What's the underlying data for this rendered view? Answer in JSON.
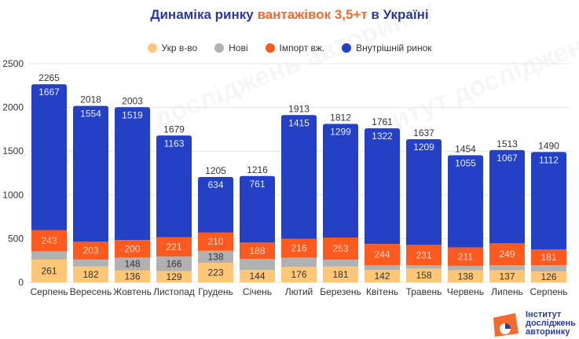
{
  "title": {
    "part1": "Динаміка ринку ",
    "part2": "вантажівок 3,5+т",
    "part3": " в Україні"
  },
  "colors": {
    "ukr": "#fdc777",
    "new": "#b1b1b1",
    "import": "#fc5a1f",
    "domestic": "#2440c4",
    "title_blue": "#2a3a9c",
    "title_accent": "#f26a2e"
  },
  "logo": {
    "line1": "Інститут",
    "line2": "досліджень",
    "line3": "авторинку"
  },
  "watermark": "Інститут досліджень авторинку",
  "chart_data": {
    "type": "bar",
    "stacked": true,
    "title": "Динаміка ринку вантажівок 3,5+т в Україні",
    "xlabel": "",
    "ylabel": "",
    "ylim": [
      0,
      2500
    ],
    "yticks": [
      0,
      500,
      1000,
      1500,
      2000,
      2500
    ],
    "grid": true,
    "legend_position": "top-center",
    "categories": [
      "Серпень",
      "Вересень",
      "Жовтень",
      "Листопад",
      "Грудень",
      "Січень",
      "Лютий",
      "Березень",
      "Квітень",
      "Травень",
      "Червень",
      "Липень",
      "Серпень"
    ],
    "series": [
      {
        "name": "Укр в-во",
        "key": "ukr",
        "values": [
          261,
          182,
          136,
          129,
          223,
          144,
          176,
          181,
          142,
          158,
          138,
          137,
          126
        ],
        "labels_shown": [
          true,
          true,
          true,
          true,
          true,
          true,
          true,
          true,
          true,
          true,
          true,
          true,
          true
        ]
      },
      {
        "name": "Нові",
        "key": "new",
        "values": [
          94,
          79,
          148,
          166,
          138,
          123,
          106,
          79,
          53,
          39,
          50,
          60,
          71
        ],
        "labels_shown": [
          false,
          false,
          true,
          true,
          true,
          false,
          false,
          false,
          false,
          false,
          false,
          false,
          false
        ]
      },
      {
        "name": "Імпорт вж.",
        "key": "import",
        "values": [
          243,
          203,
          200,
          221,
          210,
          188,
          216,
          253,
          244,
          231,
          211,
          249,
          181
        ],
        "labels_shown": [
          true,
          true,
          true,
          true,
          true,
          true,
          true,
          true,
          true,
          true,
          true,
          true,
          true
        ]
      },
      {
        "name": "Внутрішній ринок",
        "key": "domestic",
        "values": [
          1667,
          1554,
          1519,
          1163,
          634,
          761,
          1415,
          1299,
          1322,
          1209,
          1055,
          1067,
          1112
        ],
        "labels_shown": [
          true,
          true,
          true,
          true,
          true,
          true,
          true,
          true,
          true,
          true,
          true,
          true,
          true
        ]
      }
    ],
    "totals": [
      2265,
      2018,
      2003,
      1679,
      1205,
      1216,
      1913,
      1812,
      1761,
      1637,
      1454,
      1513,
      1490
    ]
  }
}
